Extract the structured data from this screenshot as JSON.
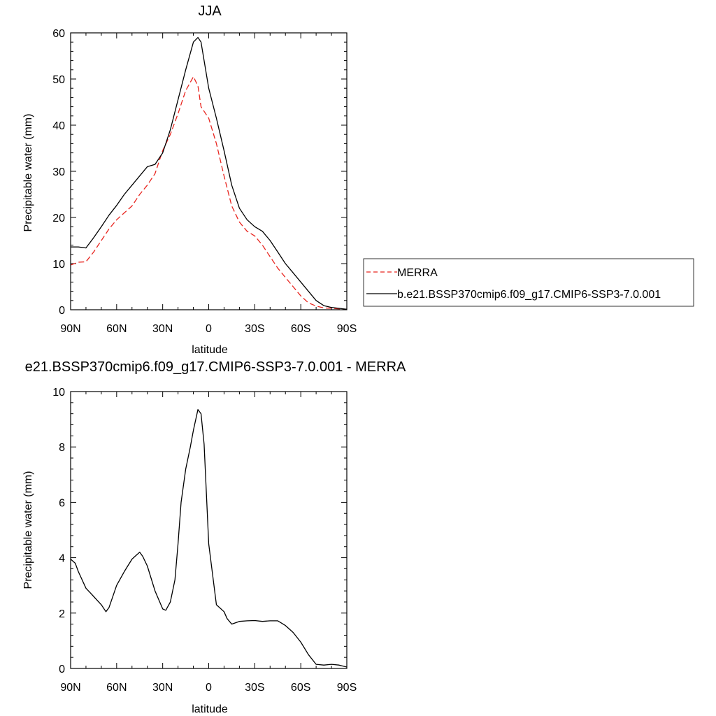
{
  "chart_data": [
    {
      "type": "line",
      "title": "JJA",
      "xlabel": "latitude",
      "ylabel": "Precipitable water (mm)",
      "xlim": [
        90,
        -90
      ],
      "ylim": [
        0,
        60
      ],
      "x_ticks": [
        90,
        60,
        30,
        0,
        -30,
        -60,
        -90
      ],
      "x_tick_labels": [
        "90N",
        "60N",
        "30N",
        "0",
        "30S",
        "60S",
        "90S"
      ],
      "y_ticks": [
        0,
        10,
        20,
        30,
        40,
        50,
        60
      ],
      "y_tick_labels": [
        "0",
        "10",
        "20",
        "30",
        "40",
        "50",
        "60"
      ],
      "grid": false,
      "legend_position": "right",
      "series": [
        {
          "name": "MERRA",
          "color": "#e8251f",
          "dash": "dashed",
          "x": [
            90,
            85,
            80,
            75,
            70,
            65,
            60,
            55,
            50,
            45,
            40,
            35,
            30,
            25,
            20,
            15,
            10,
            7,
            5,
            3,
            0,
            -5,
            -10,
            -15,
            -20,
            -25,
            -30,
            -35,
            -40,
            -45,
            -50,
            -55,
            -60,
            -65,
            -70,
            -75,
            -80,
            -85,
            -90
          ],
          "y": [
            9.7,
            10.3,
            10.4,
            12.5,
            15,
            17.5,
            19.5,
            21,
            22.5,
            25,
            27,
            29.5,
            34.5,
            38,
            42.5,
            47.5,
            50.5,
            48.5,
            44,
            43,
            41.5,
            36,
            29,
            22.5,
            19,
            17,
            16,
            14,
            11.5,
            9,
            7,
            5,
            3,
            1.5,
            0.8,
            0.4,
            0.3,
            0.2,
            0.1
          ]
        },
        {
          "name": "b.e21.BSSP370cmip6.f09_g17.CMIP6-SSP3-7.0.001",
          "color": "#000000",
          "dash": "solid",
          "x": [
            90,
            85,
            80,
            75,
            70,
            65,
            60,
            55,
            50,
            45,
            40,
            35,
            30,
            25,
            20,
            15,
            10,
            7,
            5,
            3,
            0,
            -5,
            -10,
            -15,
            -20,
            -25,
            -30,
            -35,
            -40,
            -45,
            -50,
            -55,
            -60,
            -65,
            -70,
            -75,
            -80,
            -85,
            -90
          ],
          "y": [
            13.6,
            13.6,
            13.4,
            15.6,
            18,
            20.5,
            22.6,
            25,
            27,
            29,
            31,
            31.5,
            34,
            39,
            45.5,
            52,
            58,
            59,
            58,
            54,
            48,
            41.5,
            34.5,
            27,
            22,
            19.5,
            18,
            17,
            15,
            12.5,
            10,
            8,
            6,
            4,
            2,
            0.9,
            0.5,
            0.3,
            0.1
          ]
        }
      ]
    },
    {
      "type": "line",
      "title": "e21.BSSP370cmip6.f09_g17.CMIP6-SSP3-7.0.001 - MERRA",
      "xlabel": "latitude",
      "ylabel": "Precipitable water (mm)",
      "xlim": [
        90,
        -90
      ],
      "ylim": [
        0,
        10
      ],
      "x_ticks": [
        90,
        60,
        30,
        0,
        -30,
        -60,
        -90
      ],
      "x_tick_labels": [
        "90N",
        "60N",
        "30N",
        "0",
        "30S",
        "60S",
        "90S"
      ],
      "y_ticks": [
        0,
        2,
        4,
        6,
        8,
        10
      ],
      "y_tick_labels": [
        "0",
        "2",
        "4",
        "6",
        "8",
        "10"
      ],
      "grid": false,
      "series": [
        {
          "color": "#000000",
          "dash": "solid",
          "x": [
            90,
            87,
            85,
            80,
            75,
            70,
            67,
            65,
            60,
            55,
            50,
            47,
            45,
            43,
            40,
            35,
            30,
            28,
            25,
            22,
            20,
            18,
            15,
            12,
            10,
            8,
            7,
            5,
            3,
            0,
            -5,
            -10,
            -12,
            -15,
            -20,
            -25,
            -30,
            -35,
            -40,
            -45,
            -50,
            -55,
            -60,
            -65,
            -70,
            -75,
            -80,
            -85,
            -90
          ],
          "y": [
            3.95,
            3.8,
            3.5,
            2.9,
            2.6,
            2.3,
            2.05,
            2.2,
            3.0,
            3.5,
            3.95,
            4.1,
            4.2,
            4.05,
            3.7,
            2.8,
            2.15,
            2.1,
            2.4,
            3.2,
            4.5,
            6.0,
            7.2,
            8.0,
            8.6,
            9.1,
            9.35,
            9.2,
            8.1,
            4.5,
            2.3,
            2.05,
            1.8,
            1.6,
            1.7,
            1.72,
            1.73,
            1.7,
            1.72,
            1.72,
            1.55,
            1.3,
            0.95,
            0.5,
            0.15,
            0.12,
            0.15,
            0.12,
            0.05
          ]
        }
      ]
    }
  ]
}
